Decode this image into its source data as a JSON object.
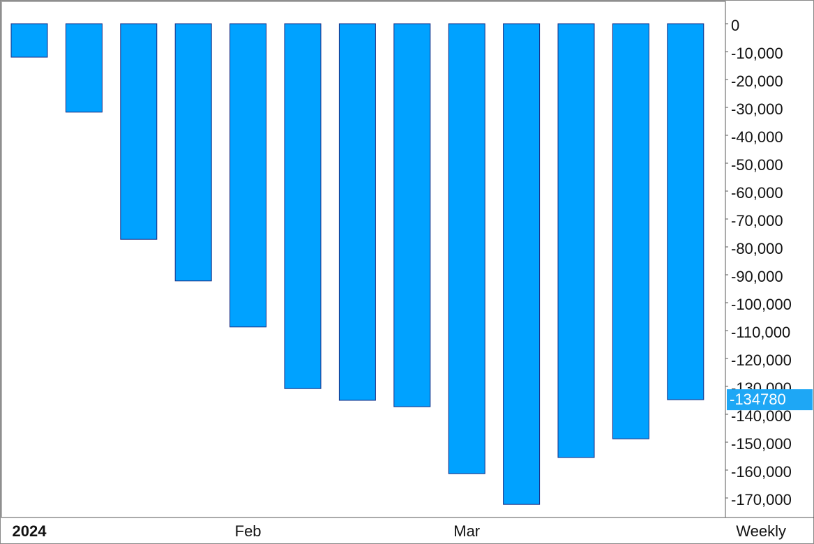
{
  "chart_data": {
    "type": "bar",
    "categories": [
      "2024",
      null,
      null,
      null,
      "Feb",
      null,
      null,
      null,
      "Mar",
      null,
      null,
      null,
      null
    ],
    "values": [
      -12000,
      -31700,
      -77300,
      -92200,
      -108700,
      -130800,
      -135000,
      -137300,
      -161300,
      -172300,
      -155500,
      -148800,
      -134780
    ],
    "color": "#00a2ff",
    "edge_color": "#1a2a80",
    "highlight_color": "#1ea7f5",
    "ylim": [
      -177000,
      8000
    ],
    "yticks": [
      0,
      {
        "value": -10000,
        "label": "-10,000"
      },
      {
        "value": -20000,
        "label": "-20,000"
      },
      {
        "value": -30000,
        "label": "-30,000"
      },
      {
        "value": -40000,
        "label": "-40,000"
      },
      {
        "value": -50000,
        "label": "-50,000"
      },
      {
        "value": -60000,
        "label": "-60,000"
      },
      {
        "value": -70000,
        "label": "-70,000"
      },
      {
        "value": -80000,
        "label": "-80,000"
      },
      {
        "value": -90000,
        "label": "-90,000"
      },
      {
        "value": -100000,
        "label": "-100,000"
      },
      {
        "value": -110000,
        "label": "-110,000"
      },
      {
        "value": -120000,
        "label": "-120,000"
      },
      {
        "value": -130000,
        "label": "-130,000"
      },
      {
        "value": -140000,
        "label": "-140,000"
      },
      {
        "value": -150000,
        "label": "-150,000"
      },
      {
        "value": -160000,
        "label": "-160,000"
      },
      {
        "value": -170000,
        "label": "-170,000"
      }
    ],
    "period_label": "Weekly",
    "grid": false
  }
}
